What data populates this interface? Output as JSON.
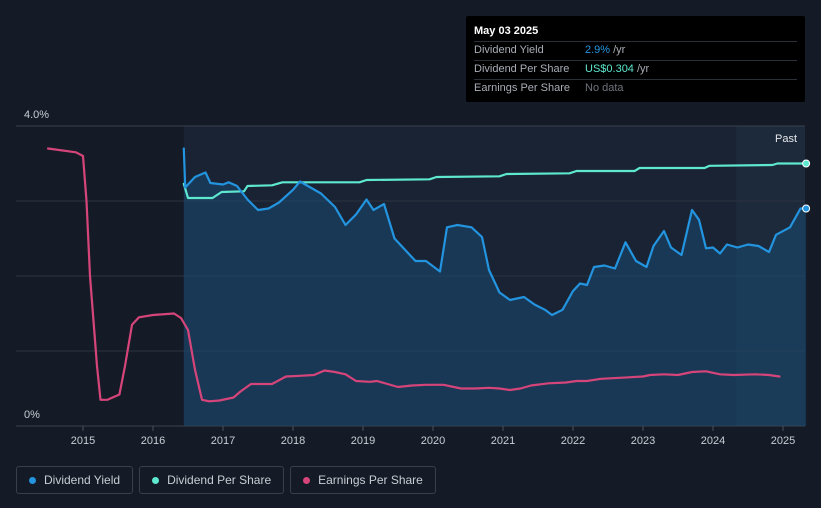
{
  "tooltip": {
    "date": "May 03 2025",
    "rows": [
      {
        "label": "Dividend Yield",
        "value": "2.9%",
        "unit": "/yr",
        "color": "#2394df"
      },
      {
        "label": "Dividend Per Share",
        "value": "US$0.304",
        "unit": "/yr",
        "color": "#5ee8cf"
      },
      {
        "label": "Earnings Per Share",
        "value": "No data",
        "unit": "",
        "color": "#6f747d"
      }
    ]
  },
  "past_label": "Past",
  "legend": [
    {
      "label": "Dividend Yield",
      "color": "#2394df"
    },
    {
      "label": "Dividend Per Share",
      "color": "#5ee8cf"
    },
    {
      "label": "Earnings Per Share",
      "color": "#d6457a"
    }
  ],
  "chart_data": {
    "type": "line",
    "x_ticks": [
      "2015",
      "2016",
      "2017",
      "2018",
      "2019",
      "2020",
      "2021",
      "2022",
      "2023",
      "2024",
      "2025"
    ],
    "y_tick_labels": [
      "4.0%",
      "0%"
    ],
    "ylim": [
      0,
      4.0
    ],
    "grid": true,
    "forecast_region_start": 2024.33,
    "series": [
      {
        "name": "Dividend Yield",
        "color": "#2394df",
        "points": [
          [
            2016.44,
            3.7
          ],
          [
            2016.46,
            3.18
          ],
          [
            2016.6,
            3.32
          ],
          [
            2016.75,
            3.38
          ],
          [
            2016.82,
            3.24
          ],
          [
            2017.0,
            3.22
          ],
          [
            2017.08,
            3.25
          ],
          [
            2017.2,
            3.2
          ],
          [
            2017.35,
            3.02
          ],
          [
            2017.5,
            2.88
          ],
          [
            2017.65,
            2.9
          ],
          [
            2017.8,
            2.98
          ],
          [
            2018.0,
            3.15
          ],
          [
            2018.1,
            3.26
          ],
          [
            2018.25,
            3.18
          ],
          [
            2018.4,
            3.1
          ],
          [
            2018.6,
            2.92
          ],
          [
            2018.75,
            2.68
          ],
          [
            2018.9,
            2.82
          ],
          [
            2019.05,
            3.02
          ],
          [
            2019.15,
            2.88
          ],
          [
            2019.3,
            2.96
          ],
          [
            2019.45,
            2.5
          ],
          [
            2019.6,
            2.35
          ],
          [
            2019.75,
            2.2
          ],
          [
            2019.9,
            2.2
          ],
          [
            2020.1,
            2.06
          ],
          [
            2020.2,
            2.65
          ],
          [
            2020.35,
            2.68
          ],
          [
            2020.55,
            2.65
          ],
          [
            2020.7,
            2.52
          ],
          [
            2020.8,
            2.08
          ],
          [
            2020.95,
            1.78
          ],
          [
            2021.1,
            1.68
          ],
          [
            2021.3,
            1.72
          ],
          [
            2021.45,
            1.62
          ],
          [
            2021.6,
            1.55
          ],
          [
            2021.7,
            1.48
          ],
          [
            2021.85,
            1.55
          ],
          [
            2022.0,
            1.8
          ],
          [
            2022.1,
            1.9
          ],
          [
            2022.2,
            1.88
          ],
          [
            2022.3,
            2.12
          ],
          [
            2022.45,
            2.14
          ],
          [
            2022.6,
            2.1
          ],
          [
            2022.75,
            2.45
          ],
          [
            2022.9,
            2.2
          ],
          [
            2023.05,
            2.12
          ],
          [
            2023.15,
            2.4
          ],
          [
            2023.3,
            2.6
          ],
          [
            2023.4,
            2.38
          ],
          [
            2023.55,
            2.28
          ],
          [
            2023.7,
            2.88
          ],
          [
            2023.8,
            2.75
          ],
          [
            2023.9,
            2.37
          ],
          [
            2024.0,
            2.38
          ],
          [
            2024.1,
            2.3
          ],
          [
            2024.2,
            2.42
          ],
          [
            2024.35,
            2.38
          ],
          [
            2024.5,
            2.42
          ],
          [
            2024.65,
            2.4
          ],
          [
            2024.8,
            2.32
          ],
          [
            2024.9,
            2.55
          ],
          [
            2025.1,
            2.65
          ],
          [
            2025.25,
            2.9
          ],
          [
            2025.33,
            2.9
          ]
        ]
      },
      {
        "name": "Dividend Per Share",
        "color": "#5ee8cf",
        "points": [
          [
            2016.44,
            3.23
          ],
          [
            2016.5,
            3.04
          ],
          [
            2016.85,
            3.04
          ],
          [
            2016.98,
            3.12
          ],
          [
            2017.3,
            3.13
          ],
          [
            2017.35,
            3.2
          ],
          [
            2017.7,
            3.21
          ],
          [
            2017.85,
            3.25
          ],
          [
            2018.95,
            3.25
          ],
          [
            2019.05,
            3.28
          ],
          [
            2019.95,
            3.29
          ],
          [
            2020.05,
            3.32
          ],
          [
            2020.95,
            3.33
          ],
          [
            2021.05,
            3.36
          ],
          [
            2021.95,
            3.37
          ],
          [
            2022.05,
            3.4
          ],
          [
            2022.88,
            3.4
          ],
          [
            2022.95,
            3.44
          ],
          [
            2023.88,
            3.44
          ],
          [
            2023.95,
            3.47
          ],
          [
            2024.85,
            3.48
          ],
          [
            2024.92,
            3.5
          ],
          [
            2025.33,
            3.5
          ]
        ]
      },
      {
        "name": "Earnings Per Share",
        "color": "#d6457a",
        "points": [
          [
            2014.5,
            3.7
          ],
          [
            2014.9,
            3.65
          ],
          [
            2015.0,
            3.6
          ],
          [
            2015.05,
            3.0
          ],
          [
            2015.1,
            2.0
          ],
          [
            2015.2,
            0.8
          ],
          [
            2015.25,
            0.35
          ],
          [
            2015.35,
            0.35
          ],
          [
            2015.52,
            0.42
          ],
          [
            2015.6,
            0.8
          ],
          [
            2015.7,
            1.35
          ],
          [
            2015.8,
            1.45
          ],
          [
            2016.0,
            1.48
          ],
          [
            2016.3,
            1.5
          ],
          [
            2016.4,
            1.44
          ],
          [
            2016.5,
            1.28
          ],
          [
            2016.6,
            0.75
          ],
          [
            2016.7,
            0.35
          ],
          [
            2016.8,
            0.33
          ],
          [
            2016.95,
            0.34
          ],
          [
            2017.15,
            0.38
          ],
          [
            2017.25,
            0.46
          ],
          [
            2017.4,
            0.56
          ],
          [
            2017.7,
            0.56
          ],
          [
            2017.9,
            0.66
          ],
          [
            2018.1,
            0.67
          ],
          [
            2018.3,
            0.68
          ],
          [
            2018.45,
            0.74
          ],
          [
            2018.6,
            0.72
          ],
          [
            2018.75,
            0.69
          ],
          [
            2018.9,
            0.6
          ],
          [
            2019.1,
            0.59
          ],
          [
            2019.2,
            0.6
          ],
          [
            2019.35,
            0.56
          ],
          [
            2019.5,
            0.52
          ],
          [
            2019.7,
            0.54
          ],
          [
            2019.9,
            0.55
          ],
          [
            2020.15,
            0.55
          ],
          [
            2020.4,
            0.5
          ],
          [
            2020.6,
            0.5
          ],
          [
            2020.8,
            0.51
          ],
          [
            2020.95,
            0.5
          ],
          [
            2021.1,
            0.48
          ],
          [
            2021.25,
            0.5
          ],
          [
            2021.4,
            0.54
          ],
          [
            2021.65,
            0.57
          ],
          [
            2021.9,
            0.58
          ],
          [
            2022.05,
            0.6
          ],
          [
            2022.2,
            0.6
          ],
          [
            2022.4,
            0.63
          ],
          [
            2022.8,
            0.65
          ],
          [
            2023.0,
            0.66
          ],
          [
            2023.1,
            0.68
          ],
          [
            2023.3,
            0.69
          ],
          [
            2023.5,
            0.68
          ],
          [
            2023.7,
            0.72
          ],
          [
            2023.9,
            0.73
          ],
          [
            2024.1,
            0.69
          ],
          [
            2024.3,
            0.68
          ],
          [
            2024.6,
            0.69
          ],
          [
            2024.8,
            0.68
          ],
          [
            2024.95,
            0.66
          ]
        ]
      }
    ]
  }
}
